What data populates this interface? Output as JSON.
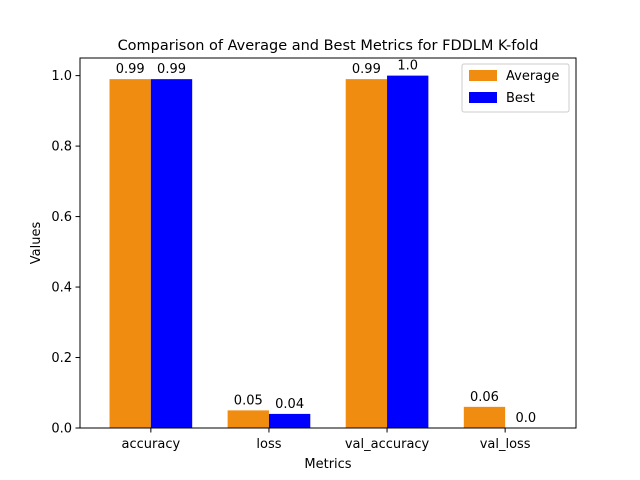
{
  "chart_data": {
    "type": "bar",
    "title": "Comparison of Average and Best Metrics for FDDLM K-fold",
    "xlabel": "Metrics",
    "ylabel": "Values",
    "categories": [
      "accuracy",
      "loss",
      "val_accuracy",
      "val_loss"
    ],
    "series": [
      {
        "name": "Average",
        "color": "#f08c0f",
        "values": [
          0.99,
          0.05,
          0.99,
          0.06
        ],
        "labels": [
          "0.99",
          "0.05",
          "0.99",
          "0.06"
        ]
      },
      {
        "name": "Best",
        "color": "#0000ff",
        "values": [
          0.99,
          0.04,
          1.0,
          0.0
        ],
        "labels": [
          "0.99",
          "0.04",
          "1.0",
          "0.0"
        ]
      }
    ],
    "ylim": [
      0,
      1.05
    ],
    "yticks": [
      "0.0",
      "0.2",
      "0.4",
      "0.6",
      "0.8",
      "1.0"
    ],
    "grid": false,
    "legend_position": "top-right"
  }
}
